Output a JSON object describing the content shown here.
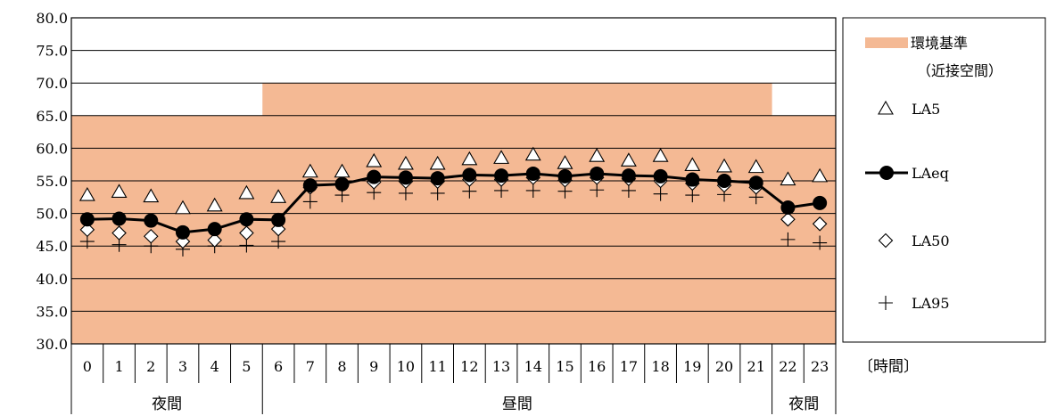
{
  "chart_data": {
    "type": "line",
    "x": [
      "0",
      "1",
      "2",
      "3",
      "4",
      "5",
      "6",
      "7",
      "8",
      "9",
      "10",
      "11",
      "12",
      "13",
      "14",
      "15",
      "16",
      "17",
      "18",
      "19",
      "20",
      "21",
      "22",
      "23"
    ],
    "xlabel": "〔時間〕",
    "ylim": [
      30.0,
      80.0
    ],
    "yticks": [
      "30.0",
      "35.0",
      "40.0",
      "45.0",
      "50.0",
      "55.0",
      "60.0",
      "65.0",
      "70.0",
      "75.0",
      "80.0"
    ],
    "grid": true,
    "legend_position": "right",
    "periods": [
      {
        "label": "夜間",
        "from": 0,
        "to": 5
      },
      {
        "label": "昼間",
        "from": 6,
        "to": 21
      },
      {
        "label": "夜間",
        "from": 22,
        "to": 23
      }
    ],
    "standard": {
      "name_line1": "環境基準",
      "name_line2": "（近接空間）",
      "values": [
        65,
        65,
        65,
        65,
        65,
        65,
        70,
        70,
        70,
        70,
        70,
        70,
        70,
        70,
        70,
        70,
        70,
        70,
        70,
        70,
        70,
        70,
        65,
        65
      ],
      "color": "#f4b994"
    },
    "series": [
      {
        "name": "LA5",
        "marker": "triangle",
        "values": [
          52.8,
          53.3,
          52.6,
          50.8,
          51.2,
          53.1,
          52.5,
          56.4,
          56.4,
          58.0,
          57.6,
          57.6,
          58.3,
          58.5,
          59.0,
          57.7,
          58.8,
          58.1,
          58.8,
          57.4,
          57.2,
          57.1,
          55.2,
          55.7
        ]
      },
      {
        "name": "LAeq",
        "marker": "circle",
        "values": [
          49.1,
          49.2,
          48.9,
          47.1,
          47.6,
          49.1,
          49.0,
          54.3,
          54.5,
          55.6,
          55.5,
          55.4,
          55.9,
          55.8,
          56.1,
          55.7,
          56.1,
          55.8,
          55.7,
          55.2,
          55.0,
          54.7,
          50.9,
          51.6
        ]
      },
      {
        "name": "LA50",
        "marker": "diamond",
        "values": [
          47.5,
          47.0,
          46.5,
          45.7,
          45.9,
          47.0,
          47.6,
          54.0,
          54.4,
          54.8,
          54.9,
          54.9,
          55.2,
          55.2,
          55.5,
          55.1,
          55.5,
          55.3,
          55.0,
          54.6,
          54.3,
          54.0,
          49.1,
          48.4
        ]
      },
      {
        "name": "LA95",
        "marker": "plus",
        "values": [
          45.7,
          45.2,
          45.0,
          44.5,
          45.0,
          45.1,
          45.7,
          51.8,
          52.8,
          53.2,
          53.1,
          53.1,
          53.4,
          53.5,
          53.5,
          53.4,
          53.6,
          53.5,
          53.0,
          52.8,
          52.9,
          52.5,
          46.0,
          45.5
        ]
      }
    ]
  }
}
